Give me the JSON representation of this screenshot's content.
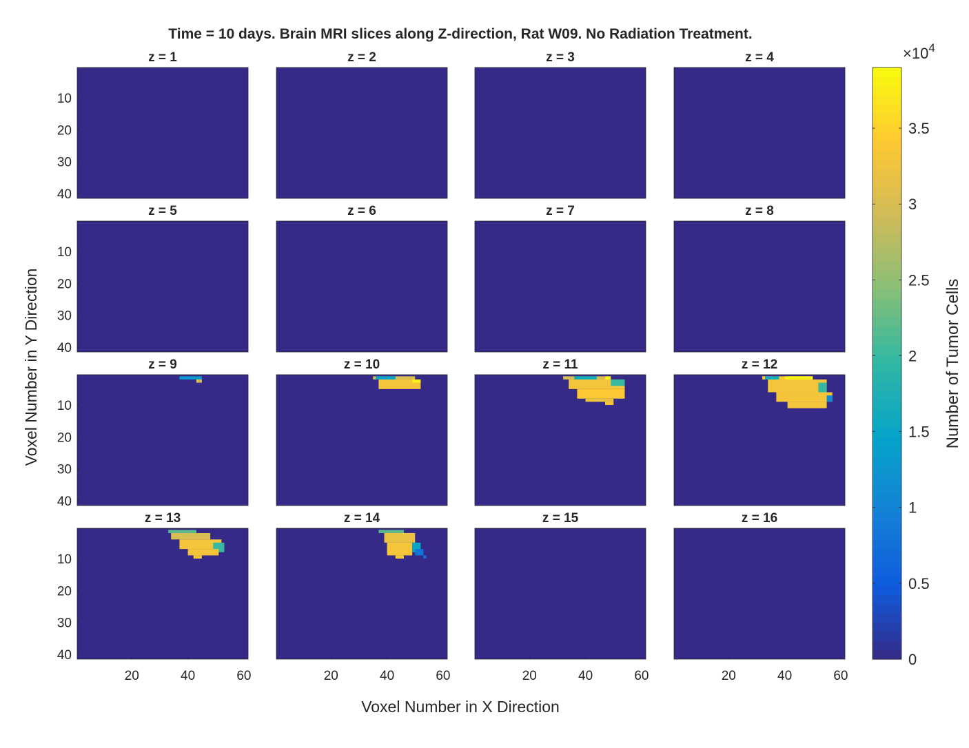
{
  "chart_data": {
    "type": "heatmap",
    "title": "Time = 10 days. Brain MRI slices along Z-direction, Rat W09. No Radiation Treatment.",
    "xlabel": "Voxel Number in X Direction",
    "ylabel": "Voxel Number in Y Direction",
    "grid": false,
    "layout": {
      "rows": 4,
      "cols": 4
    },
    "x_range": [
      0.5,
      61.5
    ],
    "y_range": [
      0.5,
      41.5
    ],
    "y_reversed": true,
    "x_ticks": [
      20,
      40,
      60
    ],
    "y_ticks": [
      10,
      20,
      30,
      40
    ],
    "colorbar": {
      "label": "Number of Tumor Cells",
      "exponent_label": "×10",
      "exponent_power": "4",
      "range": [
        0,
        39000
      ],
      "ticks": [
        0,
        0.5,
        1,
        1.5,
        2,
        2.5,
        3,
        3.5
      ],
      "tick_labels": [
        "0",
        "0.5",
        "1",
        "1.5",
        "2",
        "2.5",
        "3",
        "3.5"
      ],
      "colormap": "parula",
      "colors": [
        "#352a87",
        "#0f5cdd",
        "#1481d6",
        "#06a4ca",
        "#2eb7a4",
        "#87bf77",
        "#d1bb59",
        "#fec832",
        "#f9fb0e"
      ]
    },
    "panels": [
      {
        "title": "z = 1",
        "regions": []
      },
      {
        "title": "z = 2",
        "regions": []
      },
      {
        "title": "z = 3",
        "regions": []
      },
      {
        "title": "z = 4",
        "regions": []
      },
      {
        "title": "z = 5",
        "regions": []
      },
      {
        "title": "z = 6",
        "regions": []
      },
      {
        "title": "z = 7",
        "regions": []
      },
      {
        "title": "z = 8",
        "regions": []
      },
      {
        "title": "z = 9",
        "regions": [
          {
            "x": [
              37,
              45
            ],
            "y": [
              1,
              2
            ],
            "value": 13000
          },
          {
            "x": [
              43,
              45
            ],
            "y": [
              2,
              3
            ],
            "value": 30000
          }
        ]
      },
      {
        "title": "z = 10",
        "regions": [
          {
            "x": [
              35,
              50
            ],
            "y": [
              1,
              2
            ],
            "value": 30000
          },
          {
            "x": [
              36,
              43
            ],
            "y": [
              1,
              2
            ],
            "value": 14000
          },
          {
            "x": [
              37,
              52
            ],
            "y": [
              2,
              5
            ],
            "value": 33000
          },
          {
            "x": [
              49,
              52
            ],
            "y": [
              2,
              3
            ],
            "value": 38000
          }
        ]
      },
      {
        "title": "z = 11",
        "regions": [
          {
            "x": [
              32,
              49
            ],
            "y": [
              1,
              2
            ],
            "value": 30000
          },
          {
            "x": [
              36,
              44
            ],
            "y": [
              1,
              2
            ],
            "value": 16000
          },
          {
            "x": [
              47,
              49
            ],
            "y": [
              1,
              2
            ],
            "value": 38000
          },
          {
            "x": [
              34,
              54
            ],
            "y": [
              2,
              5
            ],
            "value": 33000
          },
          {
            "x": [
              49,
              54
            ],
            "y": [
              2,
              4
            ],
            "value": 20000
          },
          {
            "x": [
              37,
              54
            ],
            "y": [
              5,
              8
            ],
            "value": 34000
          },
          {
            "x": [
              40,
              50
            ],
            "y": [
              8,
              9
            ],
            "value": 32000
          },
          {
            "x": [
              47,
              50
            ],
            "y": [
              9,
              10
            ],
            "value": 33000
          }
        ]
      },
      {
        "title": "z = 12",
        "regions": [
          {
            "x": [
              32,
              50
            ],
            "y": [
              1,
              2
            ],
            "value": 34000
          },
          {
            "x": [
              40,
              50
            ],
            "y": [
              1,
              2
            ],
            "value": 38000
          },
          {
            "x": [
              33,
              38
            ],
            "y": [
              1,
              2
            ],
            "value": 16000
          },
          {
            "x": [
              34,
              55
            ],
            "y": [
              2,
              6
            ],
            "value": 33000
          },
          {
            "x": [
              52,
              55
            ],
            "y": [
              3,
              7
            ],
            "value": 20000
          },
          {
            "x": [
              37,
              57
            ],
            "y": [
              6,
              9
            ],
            "value": 33000
          },
          {
            "x": [
              55,
              57
            ],
            "y": [
              7,
              9
            ],
            "value": 11000
          },
          {
            "x": [
              41,
              55
            ],
            "y": [
              9,
              11
            ],
            "value": 33000
          }
        ]
      },
      {
        "title": "z = 13",
        "regions": [
          {
            "x": [
              33,
              43
            ],
            "y": [
              1,
              2
            ],
            "value": 22000
          },
          {
            "x": [
              34,
              48
            ],
            "y": [
              2,
              4
            ],
            "value": 30000
          },
          {
            "x": [
              37,
              52
            ],
            "y": [
              4,
              7
            ],
            "value": 33000
          },
          {
            "x": [
              49,
              53
            ],
            "y": [
              5,
              8
            ],
            "value": 20000
          },
          {
            "x": [
              40,
              51
            ],
            "y": [
              7,
              9
            ],
            "value": 33000
          },
          {
            "x": [
              42,
              45
            ],
            "y": [
              9,
              10
            ],
            "value": 33000
          }
        ]
      },
      {
        "title": "z = 14",
        "regions": [
          {
            "x": [
              37,
              46
            ],
            "y": [
              1,
              2
            ],
            "value": 22000
          },
          {
            "x": [
              46,
              49
            ],
            "y": [
              2,
              3
            ],
            "value": 38000
          },
          {
            "x": [
              39,
              50
            ],
            "y": [
              2,
              5
            ],
            "value": 32000
          },
          {
            "x": [
              40,
              49
            ],
            "y": [
              5,
              9
            ],
            "value": 33000
          },
          {
            "x": [
              43,
              46
            ],
            "y": [
              9,
              10
            ],
            "value": 33000
          },
          {
            "x": [
              49,
              52
            ],
            "y": [
              5,
              8
            ],
            "value": 15000
          },
          {
            "x": [
              50,
              53
            ],
            "y": [
              7,
              9
            ],
            "value": 8000
          },
          {
            "x": [
              53,
              54
            ],
            "y": [
              9,
              10
            ],
            "value": 8000
          }
        ]
      },
      {
        "title": "z = 15",
        "regions": []
      },
      {
        "title": "z = 16",
        "regions": []
      }
    ]
  }
}
